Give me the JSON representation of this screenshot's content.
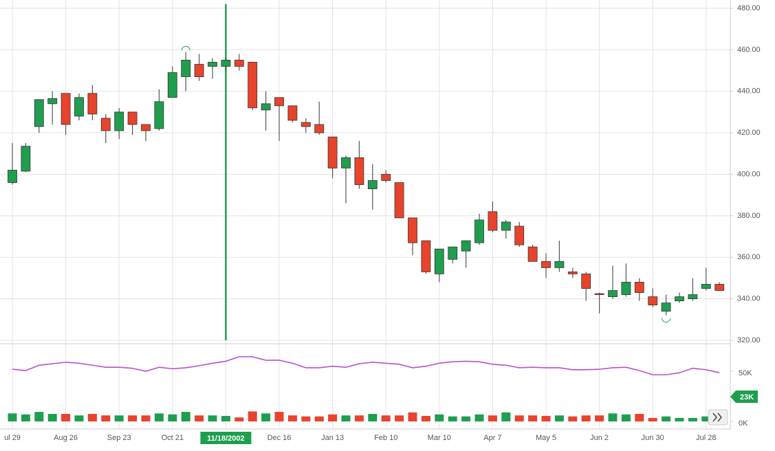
{
  "chart_data": {
    "type": "candlestick",
    "categories": [
      "ul 29",
      null,
      null,
      null,
      "Aug 26",
      null,
      null,
      null,
      "Sep 23",
      null,
      null,
      null,
      "Oct 21",
      null,
      null,
      null,
      "11/18/2002",
      null,
      null,
      null,
      "Dec 16",
      null,
      null,
      null,
      "Jan 13",
      null,
      null,
      null,
      "Feb 10",
      null,
      null,
      null,
      "Mar 10",
      null,
      null,
      null,
      "Apr 7",
      null,
      null,
      null,
      "May 5",
      null,
      null,
      null,
      "Jun 2",
      null,
      null,
      null,
      "Jun 30",
      null,
      null,
      null,
      "Jul 28",
      null
    ],
    "open": [
      396,
      401.5,
      423,
      434,
      439,
      428,
      439,
      427,
      421,
      430,
      424,
      422,
      437,
      447,
      453,
      452,
      452,
      455,
      454,
      431,
      437,
      433,
      425,
      424,
      418,
      403,
      408,
      393,
      400,
      396,
      379,
      368,
      352,
      359,
      363,
      367,
      382,
      373,
      375,
      365,
      358,
      355,
      353,
      352,
      342.5,
      341,
      342,
      348,
      341,
      334,
      339,
      340,
      345,
      347
    ],
    "high": [
      415,
      415,
      436,
      440,
      439,
      439,
      443,
      429,
      432,
      430,
      424,
      441,
      452,
      459,
      458,
      456,
      456,
      458,
      454,
      440,
      437,
      433,
      427,
      435,
      418,
      409,
      416,
      405,
      402,
      396,
      379,
      368,
      364,
      365,
      368,
      381,
      387,
      378,
      377,
      366,
      362,
      368,
      355,
      353,
      343,
      356,
      357,
      350,
      345,
      342,
      343,
      350,
      355,
      348
    ],
    "low": [
      395,
      401,
      420,
      424,
      419,
      426,
      426,
      415,
      417,
      419,
      416,
      421,
      437,
      440,
      445,
      446,
      450,
      450,
      431,
      421,
      416,
      425,
      420,
      419,
      398,
      386,
      393,
      383,
      396,
      379,
      361,
      352,
      348,
      357,
      355,
      366,
      372,
      369,
      365,
      358,
      350,
      353,
      350,
      339,
      333,
      340,
      341,
      339,
      336,
      332,
      338,
      339,
      344,
      344
    ],
    "close": [
      402,
      413.5,
      436,
      436.5,
      424,
      437,
      429,
      421,
      430,
      424,
      421,
      435,
      449,
      455,
      447,
      454,
      455,
      452,
      432,
      434,
      433,
      426,
      423,
      420,
      403,
      408,
      395,
      397,
      397,
      379,
      367,
      353,
      364,
      365,
      368,
      378,
      373,
      377,
      366,
      358,
      355,
      358,
      352,
      345,
      342,
      344,
      348,
      343,
      337,
      338,
      341,
      342,
      347,
      344
    ],
    "up_color": "#1f9e4f",
    "down_color": "#e8432c",
    "ylim": [
      320,
      480
    ],
    "yticks": [
      {
        "value": 320,
        "label": "320.00"
      },
      {
        "value": 340,
        "label": "340.00"
      },
      {
        "value": 360,
        "label": "360.00"
      },
      {
        "value": 380,
        "label": "380.00"
      },
      {
        "value": 400,
        "label": "400.00"
      },
      {
        "value": 420,
        "label": "420.00"
      },
      {
        "value": 440,
        "label": "440.00"
      },
      {
        "value": 460,
        "label": "460.00"
      },
      {
        "value": 480,
        "label": "480.00"
      }
    ],
    "volume": [
      8000,
      7000,
      9500,
      7500,
      7500,
      6000,
      7500,
      6000,
      6000,
      6000,
      6000,
      8000,
      7000,
      9500,
      6000,
      6000,
      5500,
      4000,
      10000,
      8000,
      9500,
      6000,
      5000,
      5000,
      7000,
      6000,
      6000,
      7500,
      6000,
      6000,
      9000,
      5500,
      7000,
      5000,
      5000,
      7000,
      6000,
      9000,
      6000,
      6000,
      5500,
      6000,
      5000,
      6000,
      6000,
      8000,
      7000,
      7500,
      3500,
      5000,
      3500,
      3500,
      5000,
      4000
    ],
    "volume_ma": [
      52000,
      50700,
      56000,
      57500,
      59000,
      58000,
      56000,
      54000,
      54000,
      53000,
      50000,
      54000,
      52500,
      53500,
      55500,
      58000,
      60000,
      64500,
      64500,
      61000,
      61000,
      58000,
      53500,
      53500,
      55000,
      54000,
      57500,
      59000,
      58000,
      57000,
      53500,
      55000,
      58000,
      59500,
      60000,
      59500,
      57000,
      56000,
      53500,
      54000,
      53500,
      53500,
      51500,
      51500,
      52000,
      53500,
      54000,
      50700,
      46500,
      46500,
      48500,
      53000,
      51500,
      48500
    ],
    "volume_ma_color": "#b84fd0",
    "y2lim": [
      0,
      74000
    ],
    "y2ticks": [
      {
        "value": 0,
        "label": "0K"
      },
      {
        "value": 50000,
        "label": "50K"
      }
    ],
    "volume_badge": "23K",
    "crosshair_index": 16,
    "grid": true
  }
}
